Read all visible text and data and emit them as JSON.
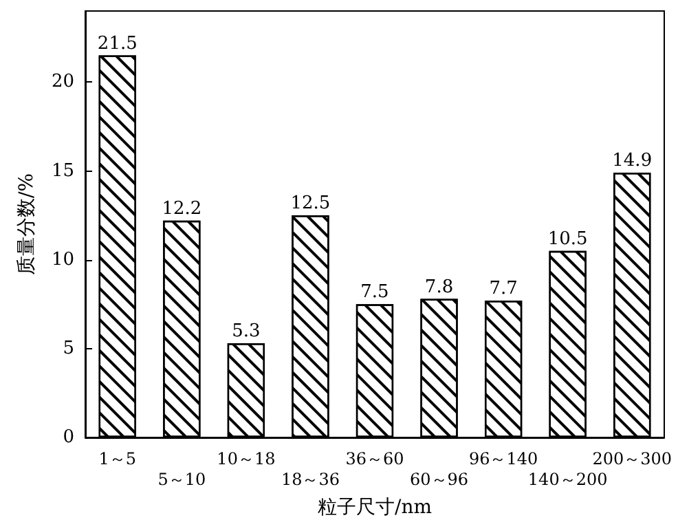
{
  "chart_data": {
    "type": "bar",
    "xlabel": "粒子尺寸/nm",
    "ylabel": "质量分数/%",
    "categories": [
      "1～5",
      "5～10",
      "10～18",
      "18～36",
      "36～60",
      "60～96",
      "96～140",
      "140～200",
      "200～300"
    ],
    "values": [
      21.5,
      12.2,
      5.3,
      12.5,
      7.5,
      7.8,
      7.7,
      10.5,
      14.9
    ],
    "color": "#000000",
    "ylim": [
      0,
      24
    ],
    "yticks": [
      0,
      5,
      10,
      15,
      20
    ],
    "grid": false,
    "data_labels": true
  }
}
